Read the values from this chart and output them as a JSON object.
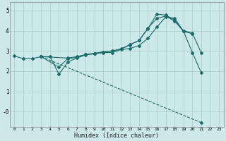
{
  "xlabel": "Humidex (Indice chaleur)",
  "background_color": "#cce8e8",
  "grid_color": "#aacccc",
  "line_color": "#1a6b6b",
  "xlim": [
    -0.5,
    23.5
  ],
  "ylim": [
    -0.75,
    5.4
  ],
  "xticks": [
    0,
    1,
    2,
    3,
    4,
    5,
    6,
    7,
    8,
    9,
    10,
    11,
    12,
    13,
    14,
    15,
    16,
    17,
    18,
    19,
    20,
    21,
    22,
    23
  ],
  "yticks": [
    0,
    1,
    2,
    3,
    4,
    5
  ],
  "ytick_labels": [
    "-0",
    "1",
    "2",
    "3",
    "4",
    "5"
  ],
  "lines": [
    {
      "x": [
        3,
        6,
        7,
        8,
        9,
        10,
        11,
        12,
        13,
        14,
        15,
        16,
        17,
        18,
        19,
        20,
        21
      ],
      "y": [
        2.72,
        2.65,
        2.72,
        2.82,
        2.88,
        2.95,
        3.0,
        3.1,
        3.3,
        3.52,
        4.1,
        4.82,
        4.78,
        4.52,
        4.0,
        3.88,
        2.9
      ]
    },
    {
      "x": [
        0,
        1,
        2,
        3,
        4,
        5,
        6,
        7,
        8,
        9,
        10,
        11,
        12,
        13,
        14,
        15,
        16,
        17,
        18,
        19,
        20,
        21
      ],
      "y": [
        2.75,
        2.62,
        2.62,
        2.72,
        2.72,
        1.85,
        2.45,
        2.65,
        2.8,
        2.86,
        2.92,
        2.92,
        3.07,
        3.12,
        3.27,
        3.62,
        4.18,
        4.68,
        4.62,
        3.97,
        2.92,
        1.92
      ]
    },
    {
      "x": [
        3,
        5,
        6,
        7,
        8,
        9,
        10,
        11,
        12,
        13,
        14,
        15,
        16,
        17,
        18,
        19,
        20
      ],
      "y": [
        2.72,
        2.2,
        2.62,
        2.68,
        2.82,
        2.88,
        2.95,
        3.0,
        3.1,
        3.32,
        3.52,
        4.12,
        4.62,
        4.72,
        4.48,
        3.97,
        3.85
      ]
    },
    {
      "x": [
        3,
        21
      ],
      "y": [
        2.72,
        -0.55
      ]
    }
  ]
}
